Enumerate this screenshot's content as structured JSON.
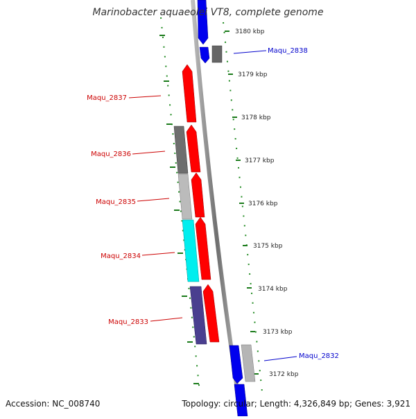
{
  "title": "Marinobacter aquaeolei VT8, complete genome",
  "footer": {
    "accession": "Accession: NC_008740",
    "topology": "Topology: circular; Length: 4,326,849 bp; Genes: 3,921"
  },
  "kbp_labels": [
    "3180 kbp",
    "3179 kbp",
    "3178 kbp",
    "3177 kbp",
    "3176 kbp",
    "3175 kbp",
    "3174 kbp",
    "3173 kbp",
    "3172 kbp"
  ],
  "gene_labels": {
    "maqu_2838": "Maqu_2838",
    "maqu_2837": "Maqu_2837",
    "maqu_2836": "Maqu_2836",
    "maqu_2835": "Maqu_2835",
    "maqu_2834": "Maqu_2834",
    "maqu_2833": "Maqu_2833",
    "maqu_2832": "Maqu_2832"
  },
  "colors": {
    "forward_label": "#0000cc",
    "reverse_label": "#cc0000",
    "forward_gene": "#0000ee",
    "reverse_gene": "#ff0000",
    "backbone": "#888888",
    "tick_dots": "#228b22"
  }
}
